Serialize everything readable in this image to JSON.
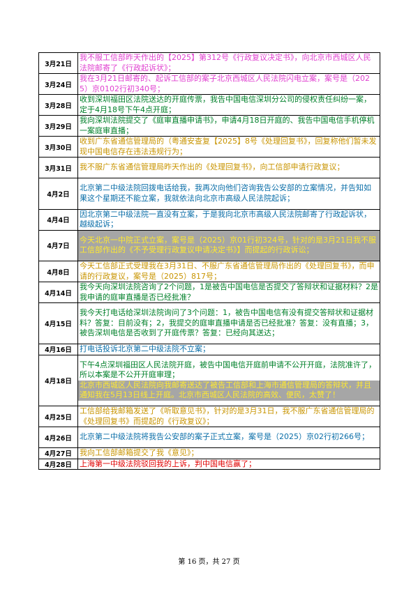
{
  "rows": [
    {
      "date": "3月21日",
      "lines": 2,
      "segments": [
        {
          "text": "我不服工信部昨天作出的【2025】第312号《行政复议决定书》，向北京市西城区人民法院邮寄了《行政起诉状》；",
          "color": "#e040d0",
          "bg": "#ffffff"
        }
      ]
    },
    {
      "date": "3月24日",
      "lines": 2,
      "segments": [
        {
          "text": "我在3月21日邮寄的、起诉工信部的案子北京西城区人民法院闪电立案，案号是（2025）京0102行初340号；",
          "color": "#e040d0",
          "bg": "#ffffff"
        }
      ]
    },
    {
      "date": "3月28日",
      "lines": 2,
      "segments": [
        {
          "text": "收到深圳福田区法院送达的开庭传票，我告中国电信深圳分公司的侵权责任纠纷一案，定于4月18号下午4点开庭；",
          "color": "#00802a",
          "bg": "#ffffff"
        }
      ]
    },
    {
      "date": "3月29日",
      "lines": 2,
      "segments": [
        {
          "text": "我向深圳法院提交了《庭审直播申请书》，申请4月18日开庭的、我告中国电信手机停机一案庭审直播；",
          "color": "#00802a",
          "bg": "#ffffff"
        }
      ]
    },
    {
      "date": "3月30日",
      "lines": 2,
      "segments": [
        {
          "text": "收到广东省通信管理局的（粤通安查复【2025】8号《处理回复书》，回复称他们暂未发现中国电信存在违法违规行为；",
          "color": "#c89400",
          "bg": "#ffffff"
        }
      ]
    },
    {
      "date": "3月31日",
      "lines": 2,
      "segments": [
        {
          "text": "我不服广东省通信管理局昨天作出的《处理回复书》，向工信部申请行政复议；",
          "color": "#c89400",
          "bg": "#ffffff"
        }
      ]
    },
    {
      "date": "4月2日",
      "lines": 3,
      "segments": [
        {
          "text": "北京第二中级法院回拨电话给我，我再次向他们咨询我告公安部的立案情况，并告知如果这个星期还不能立案，我就依法向北京市高级人民法院起诉；",
          "color": "#0a6ea8",
          "bg": "#ffffff"
        }
      ]
    },
    {
      "date": "4月4日",
      "lines": 2,
      "segments": [
        {
          "text": "因北京第二中级法院一直没有立案，于是我向北京市高级人民法院邮寄了行政起诉状，越级起诉；",
          "color": "#0a6ea8",
          "bg": "#ffffff"
        }
      ]
    },
    {
      "date": "4月7日",
      "lines": 3,
      "segments": [
        {
          "text": "今天北京一中院正式立案，案号是（2025）京01行初324号，针对的是3月21日我不服工信部作出的《不予受理行政复议申请决定书》】而提起的行政诉讼；",
          "color": "#ffe930",
          "bg": "#a6a6a6"
        }
      ]
    },
    {
      "date": "4月8日",
      "lines": 2,
      "segments": [
        {
          "text": "今天工信部正式受理我在3月31日、不服广东省通信管理局作出的《处理回复书》，而申请的行政复议，案号是（2025）817号；",
          "color": "#c89400",
          "bg": "#ffffff"
        }
      ]
    },
    {
      "date": "4月14日",
      "lines": 2,
      "segments": [
        {
          "text": "我今天向深圳法院咨询了2个问题，1是被告中国电信是否提交了答辩状和证据材料？2是我申请的庭审直播是否已经批准？",
          "color": "#00802a",
          "bg": "#ffffff"
        }
      ]
    },
    {
      "date": "4月15日",
      "lines": 4,
      "segments": [
        {
          "text": "我今天打电话给深圳法院询问了3个问题：1，被告中国电信有没有提交答辩状和证据材料？答复：目前没有；2，我提交的庭审直播申请是否已经批准？答复：没有直播；3，被告深圳电信是否收到了开庭传票？答复：已经向其送达；",
          "color": "#00802a",
          "bg": "#ffffff"
        }
      ]
    },
    {
      "date": "4月16日",
      "lines": 1,
      "segments": [
        {
          "text": "打电话投诉北京第二中级法院不立案；",
          "color": "#0a6ea8",
          "bg": "#ffffff"
        }
      ]
    },
    {
      "date": "4月18日",
      "lines": 5,
      "segments": [
        {
          "text": "下午4点深圳福田区人民法院开庭，被告中国电信开庭前申请不公开开庭，法院准许了，所以本案是不公开开庭审理；",
          "color": "#00802a",
          "bg": "#ffffff"
        },
        {
          "text": "北京市西城区人民法院向我邮寄送达了被告工信部和上海市通信管理局的答辩状，并且通知我在5月13日线上开庭。北京市西城区人民法院的高效、便民，太赞了！",
          "color": "#ffe930",
          "bg": "#a6a6a6"
        }
      ]
    },
    {
      "date": "4月25日",
      "lines": 2,
      "segments": [
        {
          "text": "工信部给我邮箱发送了《听取意见书》，针对的是3月31日，我不服广东省通信管理局的《处理回复书》而提起的《行政复议》；",
          "color": "#c89400",
          "bg": "#ffffff"
        }
      ]
    },
    {
      "date": "4月26日",
      "lines": 2,
      "segments": [
        {
          "text": "北京第二中级法院将我告公安部的案子正式立案，案号是（2025）京02行初266号；",
          "color": "#0a6ea8",
          "bg": "#ffffff"
        }
      ]
    },
    {
      "date": "4月27日",
      "lines": 1,
      "segments": [
        {
          "text": "我向工信部邮箱提交了我《意见》；",
          "color": "#c89400",
          "bg": "#ffffff"
        }
      ]
    },
    {
      "date": "4月28日",
      "lines": 1,
      "segments": [
        {
          "text": "上海第一中级法院驳回我的上诉，判中国电信赢了；",
          "color": "#e00000",
          "bg": "#ffffff"
        }
      ]
    }
  ],
  "footer": "第 16 页，共 27 页"
}
